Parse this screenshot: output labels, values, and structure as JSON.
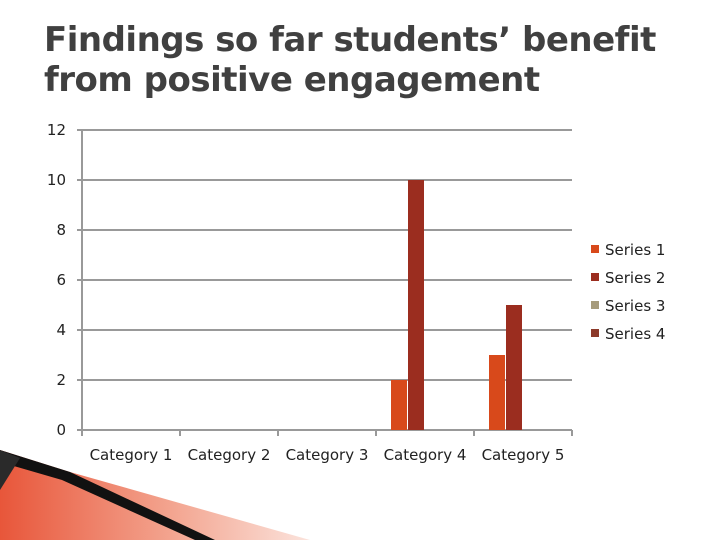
{
  "slide": {
    "title_line1": "Findings so far students’ benefit",
    "title_line2": "from positive engagement"
  },
  "chart_data": {
    "type": "bar",
    "title": "",
    "xlabel": "",
    "ylabel": "",
    "ylim": [
      0,
      12
    ],
    "yticks": [
      "0",
      "2",
      "4",
      "6",
      "8",
      "10",
      "12"
    ],
    "grid": true,
    "legend_position": "right",
    "categories": [
      "Category 1",
      "Category 2",
      "Category 3",
      "Category 4",
      "Category 5"
    ],
    "series": [
      {
        "name": "Series 1",
        "color": "#d8491b",
        "values": [
          0,
          0,
          0,
          2,
          3
        ]
      },
      {
        "name": "Series 2",
        "color": "#9b2d1f",
        "values": [
          0,
          0,
          0,
          10,
          5
        ]
      },
      {
        "name": "Series 3",
        "color": "#a69b7b",
        "values": [
          0,
          0,
          0,
          0,
          0
        ]
      },
      {
        "name": "Series 4",
        "color": "#8c3a2a",
        "values": [
          0,
          0,
          0,
          0,
          0
        ]
      }
    ]
  },
  "colors": {
    "title": "#404040",
    "gridline": "#999999",
    "deco_accent": "#e8563a",
    "deco_dark": "#111111"
  }
}
